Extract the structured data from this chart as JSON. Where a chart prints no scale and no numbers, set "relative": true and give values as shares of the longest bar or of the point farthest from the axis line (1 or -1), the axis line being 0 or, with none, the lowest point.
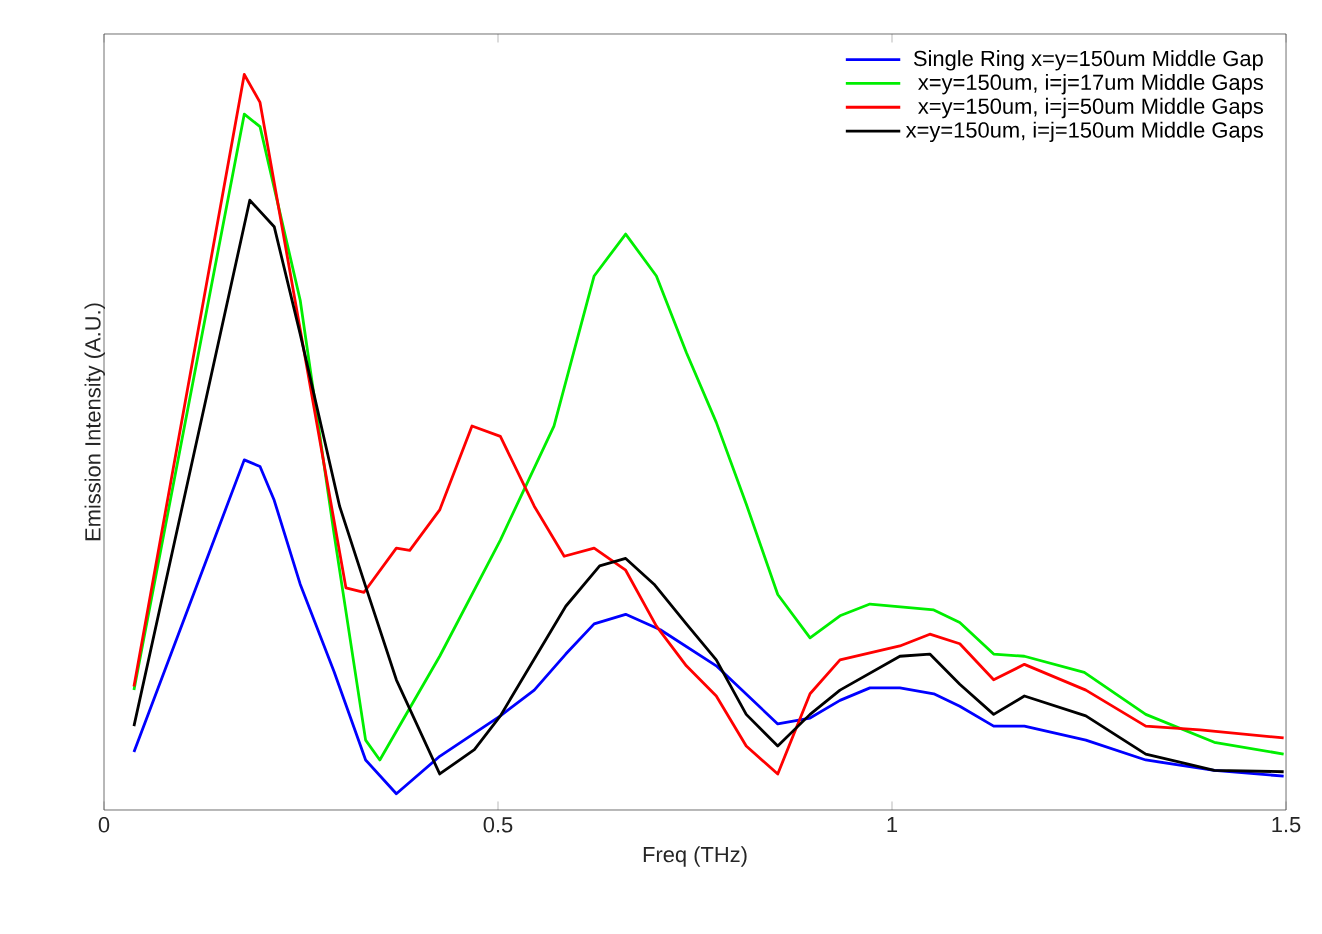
{
  "chart_data": {
    "type": "line",
    "xlabel": "Freq (THz)",
    "ylabel": "Emission Intensity (A.U.)",
    "relative": true,
    "xlim": [
      0,
      1.5
    ],
    "xticks": [
      0,
      0.5,
      1,
      1.5
    ],
    "tick_labels": "x",
    "legend": "top right",
    "grid": false,
    "marker": "none",
    "line_style": "solid",
    "series": [
      {
        "name": "Single Ring x=y=150um Middle Gap",
        "color": "#0000ff",
        "x": [
          0.038,
          0.178,
          0.198,
          0.216,
          0.249,
          0.292,
          0.332,
          0.371,
          0.426,
          0.503,
          0.546,
          0.586,
          0.622,
          0.662,
          0.706,
          0.777,
          0.855,
          0.896,
          0.934,
          0.972,
          1.01,
          1.053,
          1.086,
          1.129,
          1.168,
          1.246,
          1.322,
          1.409,
          1.497
        ],
        "values": [
          0.079,
          0.476,
          0.467,
          0.421,
          0.307,
          0.188,
          0.068,
          0.022,
          0.073,
          0.128,
          0.163,
          0.212,
          0.253,
          0.266,
          0.245,
          0.196,
          0.117,
          0.125,
          0.149,
          0.166,
          0.166,
          0.158,
          0.141,
          0.114,
          0.114,
          0.095,
          0.068,
          0.054,
          0.046
        ]
      },
      {
        "name": "x=y=150um, i=j=17um Middle Gaps",
        "color": "#00ee00",
        "x": [
          0.038,
          0.178,
          0.198,
          0.249,
          0.292,
          0.332,
          0.35,
          0.426,
          0.503,
          0.571,
          0.622,
          0.662,
          0.701,
          0.739,
          0.777,
          0.815,
          0.855,
          0.896,
          0.934,
          0.972,
          1.053,
          1.086,
          1.129,
          1.168,
          1.244,
          1.322,
          1.409,
          1.497
        ],
        "values": [
          0.163,
          0.946,
          0.929,
          0.693,
          0.375,
          0.095,
          0.068,
          0.209,
          0.367,
          0.522,
          0.726,
          0.783,
          0.726,
          0.622,
          0.527,
          0.416,
          0.293,
          0.234,
          0.264,
          0.28,
          0.272,
          0.255,
          0.212,
          0.209,
          0.187,
          0.13,
          0.092,
          0.076
        ]
      },
      {
        "name": "x=y=150um, i=j=50um Middle Gaps",
        "color": "#ff0000",
        "x": [
          0.038,
          0.178,
          0.198,
          0.307,
          0.33,
          0.371,
          0.388,
          0.426,
          0.467,
          0.503,
          0.546,
          0.584,
          0.622,
          0.662,
          0.701,
          0.739,
          0.777,
          0.815,
          0.855,
          0.896,
          0.934,
          1.01,
          1.048,
          1.086,
          1.129,
          1.168,
          1.246,
          1.322,
          1.391,
          1.497
        ],
        "values": [
          0.168,
          1.0,
          0.962,
          0.302,
          0.296,
          0.356,
          0.353,
          0.408,
          0.522,
          0.508,
          0.413,
          0.345,
          0.356,
          0.326,
          0.25,
          0.196,
          0.155,
          0.087,
          0.049,
          0.158,
          0.204,
          0.223,
          0.239,
          0.226,
          0.177,
          0.198,
          0.163,
          0.114,
          0.109,
          0.098
        ]
      },
      {
        "name": "x=y=150um, i=j=150um Middle Gaps",
        "color": "#000000",
        "x": [
          0.038,
          0.185,
          0.216,
          0.249,
          0.299,
          0.332,
          0.371,
          0.426,
          0.47,
          0.503,
          0.586,
          0.629,
          0.662,
          0.698,
          0.739,
          0.777,
          0.815,
          0.855,
          0.896,
          0.934,
          1.01,
          1.048,
          1.086,
          1.129,
          1.168,
          1.246,
          1.322,
          1.409,
          1.497
        ],
        "values": [
          0.114,
          0.829,
          0.793,
          0.647,
          0.413,
          0.304,
          0.177,
          0.049,
          0.082,
          0.128,
          0.277,
          0.332,
          0.342,
          0.307,
          0.253,
          0.204,
          0.13,
          0.087,
          0.13,
          0.163,
          0.209,
          0.212,
          0.171,
          0.13,
          0.155,
          0.128,
          0.076,
          0.054,
          0.052
        ]
      }
    ]
  }
}
